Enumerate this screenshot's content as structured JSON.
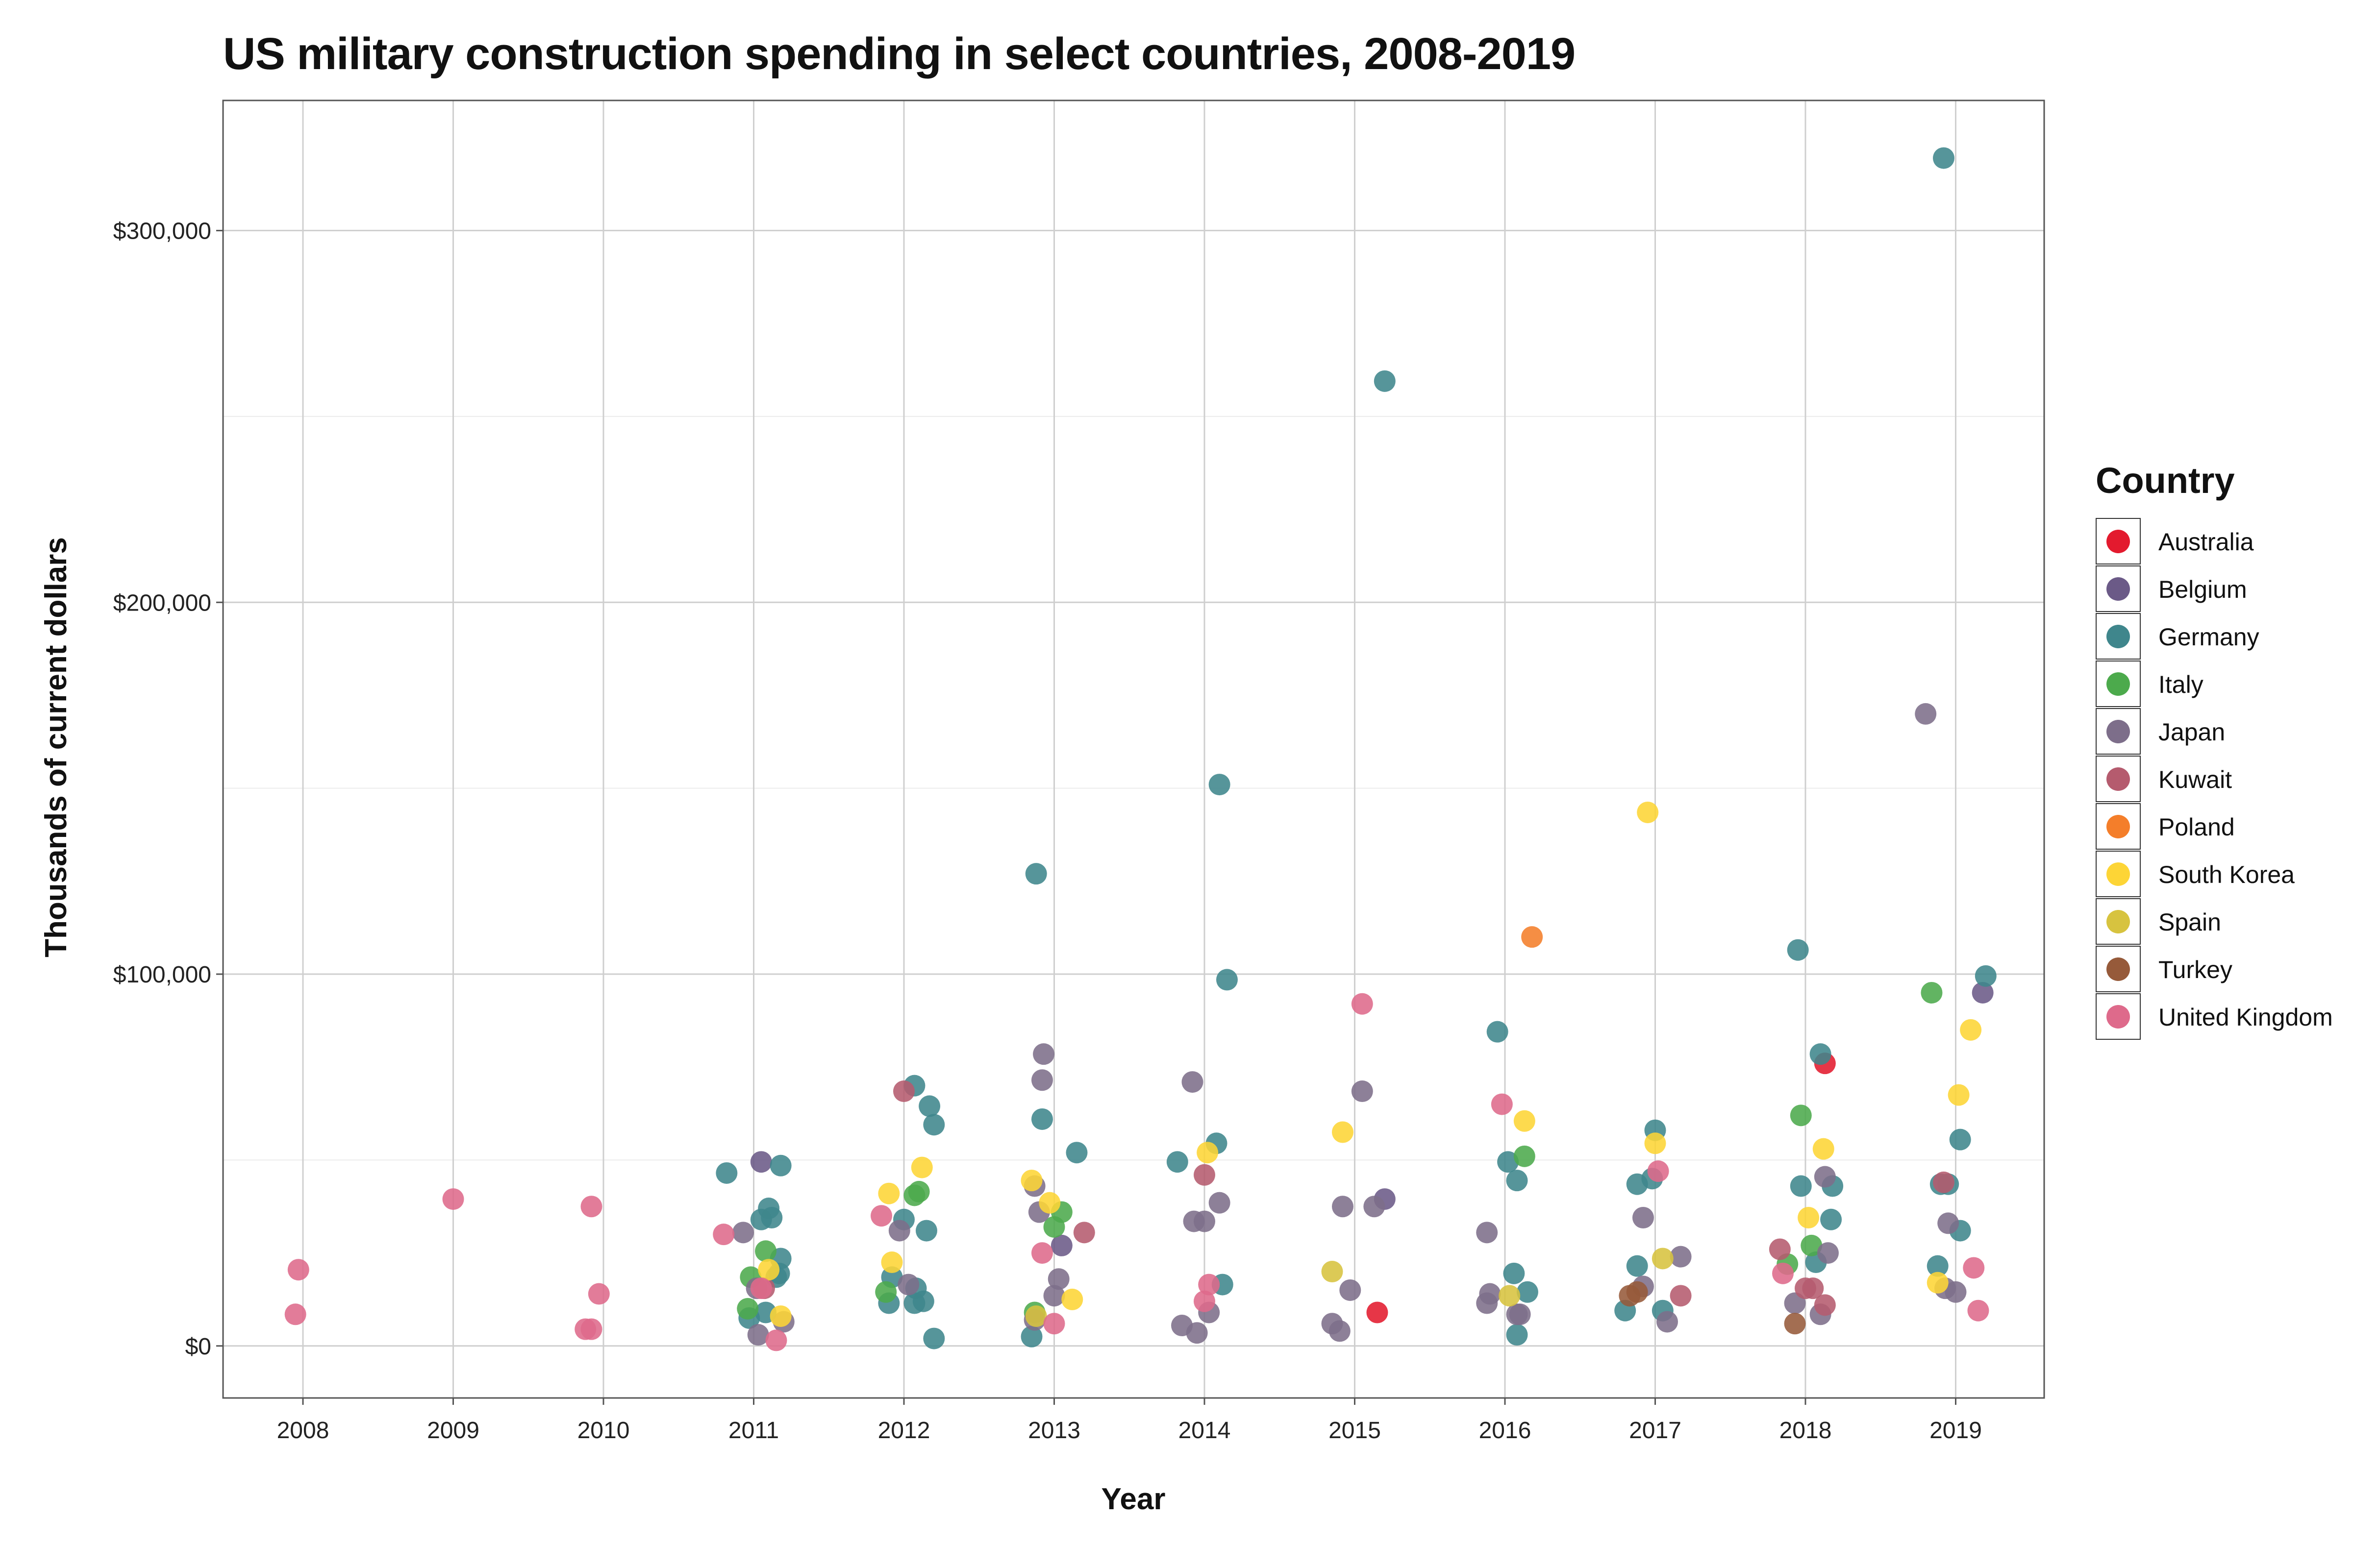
{
  "chart_data": {
    "type": "scatter",
    "title": "US military construction spending in select countries, 2008-2019",
    "xlabel": "Year",
    "ylabel": "Thousands of current dollars",
    "x_categories": [
      "2008",
      "2009",
      "2010",
      "2011",
      "2012",
      "2013",
      "2014",
      "2015",
      "2016",
      "2017",
      "2018",
      "2019"
    ],
    "ylim": [
      -14000,
      335000
    ],
    "y_ticks": [
      {
        "value": 0,
        "label": "$0"
      },
      {
        "value": 100000,
        "label": "$100,000"
      },
      {
        "value": 200000,
        "label": "$200,000"
      },
      {
        "value": 300000,
        "label": "$300,000"
      }
    ],
    "grid": true,
    "jitter": true,
    "legend_title": "Country",
    "legend_position": "right",
    "series": [
      {
        "name": "Australia",
        "color": "#E31A2E",
        "points": [
          [
            2015.15,
            9000
          ],
          [
            2018.13,
            76000
          ]
        ]
      },
      {
        "name": "Belgium",
        "color": "#6B5A87",
        "points": [
          [
            2011.05,
            49500
          ],
          [
            2013.05,
            27000
          ],
          [
            2015.2,
            39500
          ],
          [
            2019.18,
            95000
          ]
        ]
      },
      {
        "name": "Germany",
        "color": "#3F868C",
        "points": [
          [
            2010.82,
            46500
          ],
          [
            2011.05,
            34000
          ],
          [
            2011.1,
            37000
          ],
          [
            2011.12,
            34500
          ],
          [
            2011.18,
            48500
          ],
          [
            2011.18,
            23500
          ],
          [
            2011.17,
            19500
          ],
          [
            2011.15,
            18500
          ],
          [
            2011.08,
            9000
          ],
          [
            2010.97,
            7500
          ],
          [
            2012.07,
            70000
          ],
          [
            2012.17,
            64500
          ],
          [
            2012.2,
            59500
          ],
          [
            2012.0,
            34000
          ],
          [
            2012.15,
            31000
          ],
          [
            2011.92,
            18500
          ],
          [
            2012.08,
            15500
          ],
          [
            2011.9,
            11500
          ],
          [
            2012.07,
            11500
          ],
          [
            2012.13,
            12000
          ],
          [
            2012.2,
            2000
          ],
          [
            2012.88,
            127000
          ],
          [
            2012.92,
            61000
          ],
          [
            2013.15,
            52000
          ],
          [
            2012.85,
            2500
          ],
          [
            2014.1,
            151000
          ],
          [
            2014.15,
            98500
          ],
          [
            2014.08,
            54500
          ],
          [
            2013.82,
            49500
          ],
          [
            2014.12,
            16500
          ],
          [
            2015.2,
            259500
          ],
          [
            2015.95,
            84500
          ],
          [
            2016.02,
            49500
          ],
          [
            2016.08,
            44500
          ],
          [
            2016.06,
            19500
          ],
          [
            2016.15,
            14500
          ],
          [
            2016.08,
            3000
          ],
          [
            2017.0,
            58000
          ],
          [
            2016.98,
            45000
          ],
          [
            2016.88,
            43500
          ],
          [
            2016.88,
            21500
          ],
          [
            2016.8,
            9500
          ],
          [
            2017.05,
            9500
          ],
          [
            2017.95,
            106500
          ],
          [
            2018.1,
            78500
          ],
          [
            2017.97,
            43000
          ],
          [
            2018.18,
            43000
          ],
          [
            2018.17,
            34000
          ],
          [
            2018.07,
            22500
          ],
          [
            2018.92,
            319500
          ],
          [
            2019.2,
            99500
          ],
          [
            2019.03,
            55500
          ],
          [
            2018.95,
            43500
          ],
          [
            2018.9,
            43500
          ],
          [
            2019.03,
            31000
          ],
          [
            2018.88,
            21500
          ]
        ]
      },
      {
        "name": "Italy",
        "color": "#4CAA4C",
        "points": [
          [
            2011.08,
            25500
          ],
          [
            2010.98,
            18500
          ],
          [
            2010.96,
            10000
          ],
          [
            2012.1,
            41500
          ],
          [
            2012.07,
            40500
          ],
          [
            2011.88,
            14500
          ],
          [
            2013.05,
            36000
          ],
          [
            2013.0,
            32000
          ],
          [
            2012.87,
            9000
          ],
          [
            2016.13,
            51000
          ],
          [
            2017.97,
            62000
          ],
          [
            2018.04,
            27000
          ],
          [
            2017.88,
            22000
          ],
          [
            2018.84,
            95000
          ]
        ]
      },
      {
        "name": "Japan",
        "color": "#7D6E8A",
        "points": [
          [
            2010.93,
            30500
          ],
          [
            2011.02,
            15500
          ],
          [
            2011.03,
            3000
          ],
          [
            2011.2,
            6500
          ],
          [
            2011.97,
            31000
          ],
          [
            2012.03,
            16500
          ],
          [
            2012.93,
            78500
          ],
          [
            2012.92,
            71500
          ],
          [
            2012.87,
            43000
          ],
          [
            2012.9,
            36000
          ],
          [
            2013.03,
            18000
          ],
          [
            2013.0,
            13500
          ],
          [
            2012.87,
            7000
          ],
          [
            2013.92,
            71000
          ],
          [
            2014.1,
            38500
          ],
          [
            2013.93,
            33500
          ],
          [
            2014.0,
            33500
          ],
          [
            2014.03,
            9000
          ],
          [
            2013.85,
            5500
          ],
          [
            2013.95,
            3500
          ],
          [
            2015.05,
            68500
          ],
          [
            2014.92,
            37500
          ],
          [
            2015.13,
            37500
          ],
          [
            2014.97,
            15000
          ],
          [
            2014.85,
            6000
          ],
          [
            2014.9,
            4000
          ],
          [
            2015.88,
            30500
          ],
          [
            2015.9,
            14000
          ],
          [
            2015.88,
            11500
          ],
          [
            2016.08,
            8500
          ],
          [
            2016.1,
            8500
          ],
          [
            2016.92,
            34500
          ],
          [
            2017.17,
            24000
          ],
          [
            2016.92,
            16000
          ],
          [
            2017.08,
            6500
          ],
          [
            2018.13,
            45500
          ],
          [
            2018.15,
            25000
          ],
          [
            2017.93,
            11500
          ],
          [
            2018.1,
            8500
          ],
          [
            2018.8,
            170000
          ],
          [
            2018.95,
            33000
          ],
          [
            2018.93,
            15500
          ],
          [
            2019.0,
            14500
          ]
        ]
      },
      {
        "name": "Kuwait",
        "color": "#B55B6E",
        "points": [
          [
            2011.07,
            15500
          ],
          [
            2012.0,
            68500
          ],
          [
            2013.2,
            30500
          ],
          [
            2014.0,
            46000
          ],
          [
            2017.17,
            13500
          ],
          [
            2017.83,
            26000
          ],
          [
            2018.0,
            15500
          ],
          [
            2018.05,
            15500
          ],
          [
            2018.13,
            11000
          ],
          [
            2018.92,
            44000
          ]
        ]
      },
      {
        "name": "Poland",
        "color": "#F47E2A",
        "points": [
          [
            2016.18,
            110000
          ]
        ]
      },
      {
        "name": "South Korea",
        "color": "#FDD536",
        "points": [
          [
            2011.1,
            20500
          ],
          [
            2011.18,
            8000
          ],
          [
            2012.12,
            48000
          ],
          [
            2011.9,
            41000
          ],
          [
            2011.92,
            22500
          ],
          [
            2012.85,
            44500
          ],
          [
            2012.97,
            38500
          ],
          [
            2013.12,
            12500
          ],
          [
            2014.02,
            52000
          ],
          [
            2014.92,
            57500
          ],
          [
            2016.13,
            60500
          ],
          [
            2016.95,
            143500
          ],
          [
            2017.0,
            54500
          ],
          [
            2018.12,
            53000
          ],
          [
            2018.02,
            34500
          ],
          [
            2019.1,
            85000
          ],
          [
            2019.02,
            67500
          ],
          [
            2018.88,
            17000
          ]
        ]
      },
      {
        "name": "Spain",
        "color": "#D7C33F",
        "points": [
          [
            2012.88,
            8000
          ],
          [
            2014.85,
            20000
          ],
          [
            2016.03,
            13500
          ],
          [
            2017.05,
            23500
          ]
        ]
      },
      {
        "name": "Turkey",
        "color": "#965A3A",
        "points": [
          [
            2016.83,
            13500
          ],
          [
            2016.88,
            14500
          ],
          [
            2017.93,
            6000
          ]
        ]
      },
      {
        "name": "United Kingdom",
        "color": "#DE6A8B",
        "points": [
          [
            2007.97,
            20500
          ],
          [
            2007.95,
            8500
          ],
          [
            2009.0,
            39500
          ],
          [
            2009.92,
            37500
          ],
          [
            2009.97,
            14000
          ],
          [
            2009.88,
            4500
          ],
          [
            2009.92,
            4500
          ],
          [
            2010.8,
            30000
          ],
          [
            2011.05,
            15500
          ],
          [
            2011.15,
            1500
          ],
          [
            2011.85,
            35000
          ],
          [
            2012.92,
            25000
          ],
          [
            2013.0,
            6000
          ],
          [
            2014.0,
            12000
          ],
          [
            2014.03,
            16500
          ],
          [
            2015.05,
            92000
          ],
          [
            2015.98,
            65000
          ],
          [
            2017.02,
            47000
          ],
          [
            2017.85,
            19500
          ],
          [
            2019.12,
            21000
          ],
          [
            2019.15,
            9500
          ]
        ]
      }
    ]
  }
}
